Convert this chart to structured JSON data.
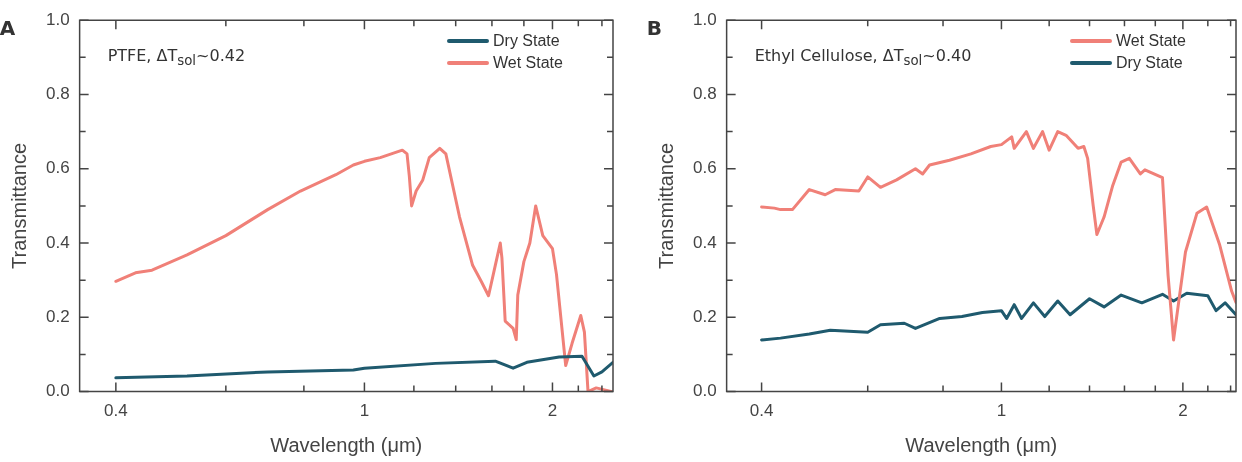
{
  "chart_data": [
    {
      "type": "line",
      "xlabel": "Wavelength (μm)",
      "ylabel": "Transmittance",
      "log": "x",
      "legend": "top right",
      "annotations": [
        "A",
        "PTFE, ΔT$_{sol}$~0.42"
      ],
      "xlim": [
        0.35,
        2.5
      ],
      "xticks": [
        0.4,
        {
          "value": 0.6,
          "label": null
        },
        {
          "value": 0.8,
          "label": null
        },
        1,
        {
          "value": 1.2,
          "label": null
        },
        {
          "value": 1.4,
          "label": null
        },
        {
          "value": 1.6,
          "label": null
        },
        {
          "value": 1.8,
          "label": null
        },
        2,
        {
          "value": 2.2,
          "label": null
        },
        {
          "value": 2.4,
          "label": null
        }
      ],
      "ylim": [
        0,
        1
      ],
      "yticks": [
        {
          "value": 0,
          "label": "0.0"
        },
        {
          "value": 0.1,
          "label": null
        },
        {
          "value": 0.2,
          "label": "0.2"
        },
        {
          "value": 0.3,
          "label": null
        },
        {
          "value": 0.4,
          "label": "0.4"
        },
        {
          "value": 0.5,
          "label": null
        },
        {
          "value": 0.6,
          "label": "0.6"
        },
        {
          "value": 0.7,
          "label": null
        },
        {
          "value": 0.8,
          "label": "0.8"
        },
        {
          "value": 0.9,
          "label": null
        },
        {
          "value": 1,
          "label": "1.0"
        }
      ],
      "series": [
        {
          "name": "Dry State",
          "color": "#1f5a6e",
          "x": [
            0.4,
            0.52,
            0.7,
            0.96,
            1.0,
            1.3,
            1.62,
            1.73,
            1.82,
            2.05,
            2.23,
            2.33,
            2.4,
            2.5
          ],
          "values": [
            0.037,
            0.042,
            0.053,
            0.058,
            0.063,
            0.076,
            0.082,
            0.063,
            0.079,
            0.093,
            0.095,
            0.042,
            0.053,
            0.079
          ]
        },
        {
          "name": "Wet State",
          "color": "#f08078",
          "x": [
            0.4,
            0.43,
            0.457,
            0.52,
            0.6,
            0.7,
            0.79,
            0.9,
            0.96,
            1.0,
            1.06,
            1.15,
            1.17,
            1.18,
            1.19,
            1.21,
            1.24,
            1.27,
            1.32,
            1.35,
            1.42,
            1.49,
            1.54,
            1.58,
            1.62,
            1.65,
            1.66,
            1.68,
            1.73,
            1.75,
            1.76,
            1.8,
            1.84,
            1.88,
            1.93,
            2.0,
            2.03,
            2.1,
            2.15,
            2.22,
            2.25,
            2.28,
            2.35,
            2.49
          ],
          "values": [
            0.297,
            0.32,
            0.327,
            0.368,
            0.42,
            0.49,
            0.54,
            0.584,
            0.61,
            0.62,
            0.63,
            0.65,
            0.64,
            0.58,
            0.5,
            0.54,
            0.57,
            0.63,
            0.655,
            0.64,
            0.47,
            0.34,
            0.295,
            0.258,
            0.34,
            0.4,
            0.36,
            0.19,
            0.17,
            0.14,
            0.26,
            0.35,
            0.4,
            0.5,
            0.42,
            0.385,
            0.315,
            0.07,
            0.13,
            0.205,
            0.16,
            0,
            0.01,
            0
          ]
        }
      ]
    },
    {
      "type": "line",
      "xlabel": "Wavelength (μm)",
      "ylabel": "Transmittance",
      "log": "x",
      "legend": "top right",
      "annotations": [
        "B",
        "Ethyl Cellulose, ΔT$_{sol}$~0.40"
      ],
      "xlim": [
        0.35,
        2.45
      ],
      "xticks": [
        0.4,
        {
          "value": 0.6,
          "label": null
        },
        {
          "value": 0.8,
          "label": null
        },
        1,
        {
          "value": 1.2,
          "label": null
        },
        {
          "value": 1.4,
          "label": null
        },
        {
          "value": 1.6,
          "label": null
        },
        {
          "value": 1.8,
          "label": null
        },
        2,
        {
          "value": 2.2,
          "label": null
        },
        {
          "value": 2.4,
          "label": null
        }
      ],
      "ylim": [
        0,
        1
      ],
      "yticks": [
        {
          "value": 0,
          "label": "0.0"
        },
        {
          "value": 0.1,
          "label": null
        },
        {
          "value": 0.2,
          "label": "0.2"
        },
        {
          "value": 0.3,
          "label": null
        },
        {
          "value": 0.4,
          "label": "0.4"
        },
        {
          "value": 0.5,
          "label": null
        },
        {
          "value": 0.6,
          "label": "0.6"
        },
        {
          "value": 0.7,
          "label": null
        },
        {
          "value": 0.8,
          "label": "0.8"
        },
        {
          "value": 0.9,
          "label": null
        },
        {
          "value": 1,
          "label": "1.0"
        }
      ],
      "series": [
        {
          "name": "Wet State",
          "color": "#f08078",
          "x": [
            0.4,
            0.42,
            0.43,
            0.45,
            0.48,
            0.51,
            0.53,
            0.58,
            0.6,
            0.63,
            0.67,
            0.72,
            0.74,
            0.76,
            0.82,
            0.89,
            0.96,
            1.0,
            1.04,
            1.05,
            1.1,
            1.13,
            1.17,
            1.2,
            1.24,
            1.28,
            1.34,
            1.37,
            1.39,
            1.42,
            1.44,
            1.48,
            1.53,
            1.58,
            1.63,
            1.7,
            1.73,
            1.85,
            1.89,
            1.93,
            2.02,
            2.11,
            2.19,
            2.3,
            2.41,
            2.45
          ],
          "values": [
            0.497,
            0.494,
            0.49,
            0.49,
            0.544,
            0.53,
            0.544,
            0.54,
            0.578,
            0.55,
            0.57,
            0.6,
            0.586,
            0.61,
            0.623,
            0.64,
            0.66,
            0.665,
            0.686,
            0.655,
            0.7,
            0.655,
            0.7,
            0.65,
            0.7,
            0.69,
            0.655,
            0.66,
            0.628,
            0.5,
            0.423,
            0.47,
            0.555,
            0.618,
            0.628,
            0.586,
            0.597,
            0.576,
            0.313,
            0.139,
            0.376,
            0.48,
            0.497,
            0.397,
            0.27,
            0.24
          ]
        },
        {
          "name": "Dry State",
          "color": "#1f5a6e",
          "x": [
            0.4,
            0.43,
            0.48,
            0.52,
            0.6,
            0.63,
            0.69,
            0.72,
            0.79,
            0.86,
            0.93,
            1.0,
            1.02,
            1.05,
            1.08,
            1.13,
            1.18,
            1.24,
            1.3,
            1.4,
            1.48,
            1.58,
            1.71,
            1.85,
            1.93,
            2.03,
            2.2,
            2.27,
            2.35,
            2.45
          ],
          "values": [
            0.139,
            0.144,
            0.155,
            0.165,
            0.16,
            0.18,
            0.184,
            0.17,
            0.197,
            0.202,
            0.213,
            0.218,
            0.197,
            0.234,
            0.197,
            0.239,
            0.202,
            0.244,
            0.207,
            0.25,
            0.228,
            0.26,
            0.239,
            0.262,
            0.244,
            0.265,
            0.258,
            0.218,
            0.239,
            0.207
          ]
        }
      ]
    }
  ]
}
